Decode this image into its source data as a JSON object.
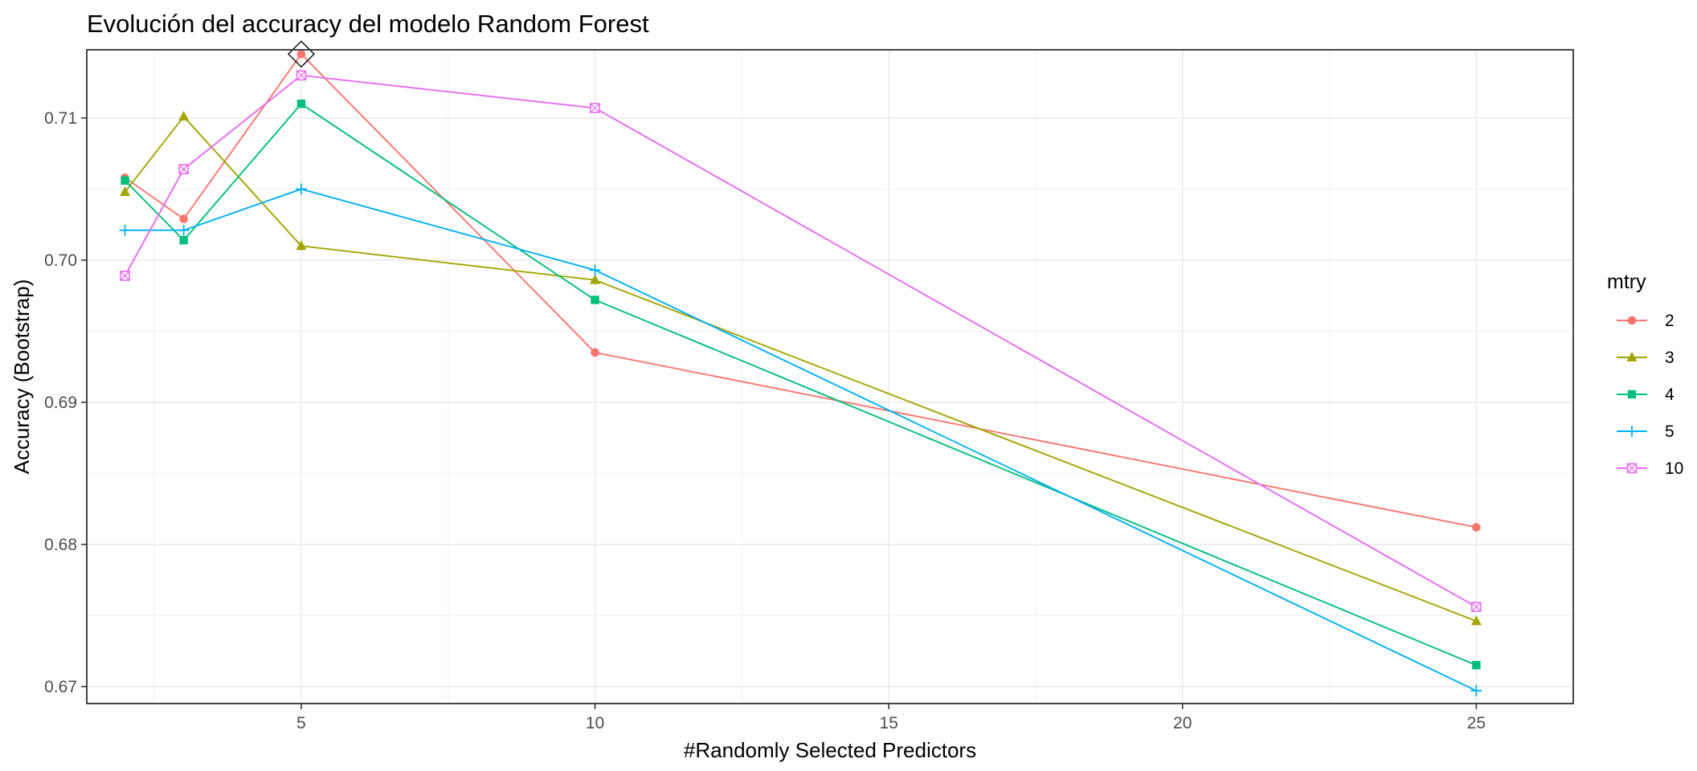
{
  "chart_data": {
    "type": "line",
    "title": "Evolución del accuracy del modelo Random Forest",
    "xlabel": "#Randomly Selected Predictors",
    "ylabel": "Accuracy (Bootstrap)",
    "x": [
      2,
      3,
      5,
      10,
      25
    ],
    "xlim": [
      1.35,
      26.65
    ],
    "ylim": [
      0.6688,
      0.7148
    ],
    "x_ticks": [
      5,
      10,
      15,
      20,
      25
    ],
    "x_tick_labels": [
      "5",
      "10",
      "15",
      "20",
      "25"
    ],
    "y_ticks": [
      0.67,
      0.68,
      0.69,
      0.7,
      0.71
    ],
    "y_tick_labels": [
      "0.67",
      "0.68",
      "0.69",
      "0.70",
      "0.71"
    ],
    "grid": true,
    "legend": {
      "title": "mtry",
      "placement": "right"
    },
    "series": [
      {
        "name": "2",
        "color": "#F8766D",
        "marker": "circle",
        "values": [
          0.7058,
          0.7029,
          0.7145,
          0.6935,
          0.6812
        ]
      },
      {
        "name": "3",
        "color": "#A3A500",
        "marker": "triangle",
        "values": [
          0.7048,
          0.7101,
          0.701,
          0.6986,
          0.6746
        ]
      },
      {
        "name": "4",
        "color": "#00BF7D",
        "marker": "square",
        "values": [
          0.7056,
          0.7014,
          0.711,
          0.6972,
          0.6715
        ]
      },
      {
        "name": "5",
        "color": "#00B0F6",
        "marker": "plus",
        "values": [
          0.7021,
          0.7021,
          0.705,
          0.6993,
          0.6697
        ]
      },
      {
        "name": "10",
        "color": "#E76BF3",
        "marker": "boxcross",
        "values": [
          0.6989,
          0.7064,
          0.713,
          0.7107,
          0.6756
        ]
      }
    ],
    "best_point": {
      "x": 5,
      "y": 0.7145,
      "marker": "diamond",
      "color": "#000000"
    }
  }
}
